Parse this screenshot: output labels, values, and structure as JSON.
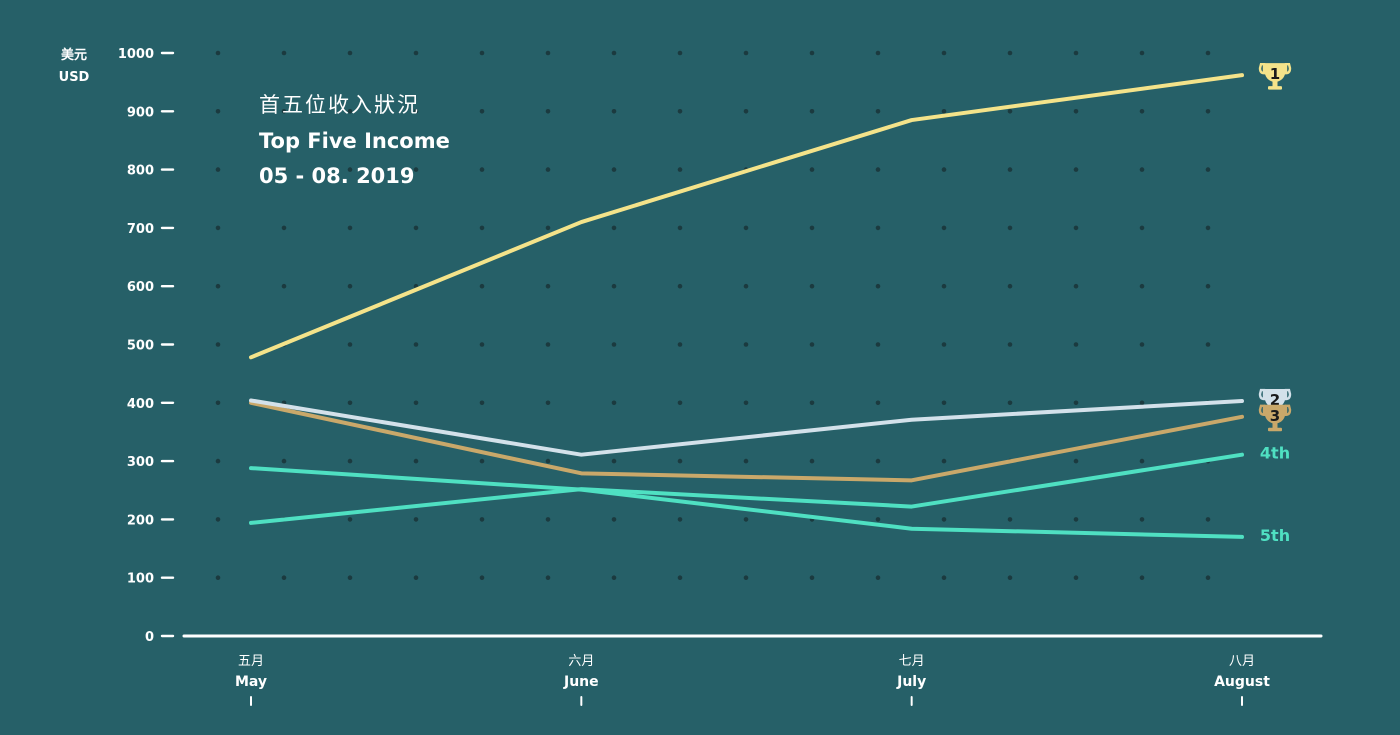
{
  "colors": {
    "background": "#266068",
    "axis": "#ffffff",
    "dots": "#1b3a3f",
    "gold": "#f4e38a",
    "silver": "#d3e1ea",
    "bronze": "#c9a86a",
    "teal": "#4fe0c2"
  },
  "header": {
    "title_zh": "首五位收入狀況",
    "title_en": "Top Five Income",
    "date_range": "05 - 08. 2019"
  },
  "chart_data": {
    "type": "line",
    "title": "首五位收入狀況 Top Five Income 05 - 08. 2019",
    "ylabel": {
      "zh": "美元",
      "en": "USD"
    },
    "ylim": [
      0,
      1000
    ],
    "yticks": [
      0,
      100,
      200,
      300,
      400,
      500,
      600,
      700,
      800,
      900,
      1000
    ],
    "categories": [
      {
        "zh": "五月",
        "en": "May"
      },
      {
        "zh": "六月",
        "en": "June"
      },
      {
        "zh": "七月",
        "en": "July"
      },
      {
        "zh": "八月",
        "en": "August"
      }
    ],
    "grid": "dotted",
    "series": [
      {
        "name": "1",
        "rank_label": "1",
        "marker": "trophy-gold",
        "color": "#f4e38a",
        "values": [
          478,
          710,
          885,
          962
        ]
      },
      {
        "name": "2",
        "rank_label": "2",
        "marker": "trophy-silver",
        "color": "#d3e1ea",
        "values": [
          404,
          311,
          371,
          403
        ]
      },
      {
        "name": "3",
        "rank_label": "3",
        "marker": "trophy-bronze",
        "color": "#c9a86a",
        "values": [
          400,
          279,
          267,
          376
        ]
      },
      {
        "name": "4th",
        "rank_label": "4th",
        "marker": "text",
        "color": "#4fe0c2",
        "values": [
          194,
          252,
          222,
          311
        ]
      },
      {
        "name": "5th",
        "rank_label": "5th",
        "marker": "text",
        "color": "#4fe0c2",
        "values": [
          288,
          251,
          184,
          170
        ]
      }
    ]
  }
}
